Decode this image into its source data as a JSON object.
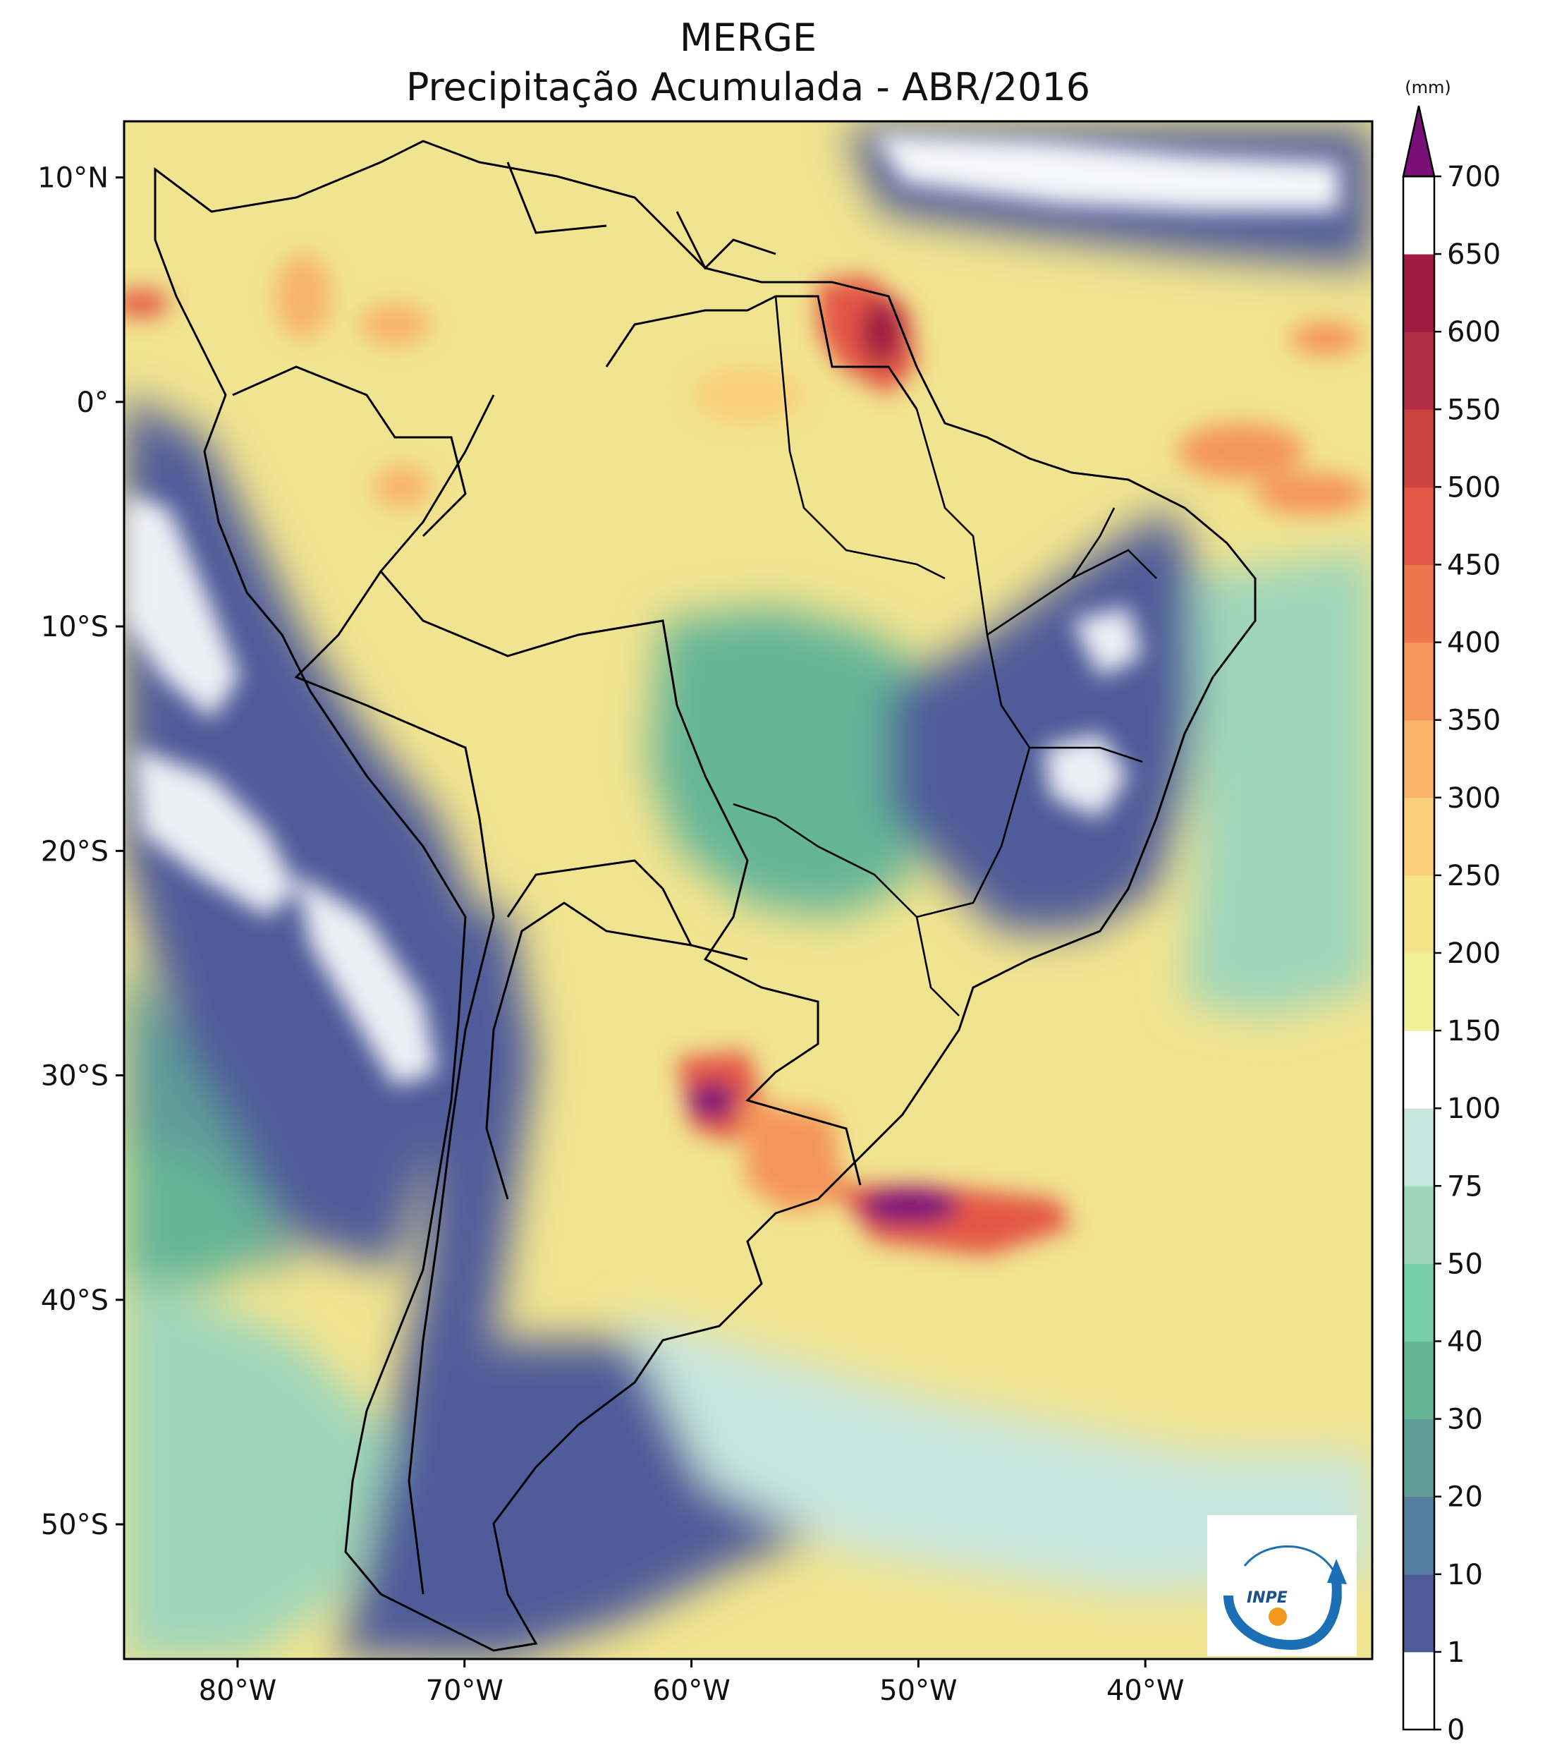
{
  "title": {
    "line1": "MERGE",
    "line2": "Precipitação Acumulada - ABR/2016"
  },
  "map": {
    "lon_range": [
      -85,
      -30
    ],
    "lat_range": [
      -56,
      12.5
    ],
    "lat_ticks": [
      "10°N",
      "0°",
      "10°S",
      "20°S",
      "30°S",
      "40°S",
      "50°S"
    ],
    "lon_ticks": [
      "80°W",
      "70°W",
      "60°W",
      "50°W",
      "40°W"
    ],
    "base_color": "#f1e490"
  },
  "colorbar": {
    "unit": "(mm)",
    "levels": [
      "0",
      "1",
      "10",
      "20",
      "30",
      "40",
      "50",
      "75",
      "100",
      "150",
      "200",
      "250",
      "300",
      "350",
      "400",
      "450",
      "500",
      "550",
      "600",
      "650",
      "700"
    ],
    "colors": [
      "#ffffff",
      "#4f5c99",
      "#577ea0",
      "#5f9c98",
      "#65b597",
      "#75cfa3",
      "#9fd6ba",
      "#c8e6de",
      "#ffffff",
      "#f0f098",
      "#f7e38a",
      "#f9cf79",
      "#f7b46a",
      "#f4955a",
      "#ee764d",
      "#e35744",
      "#cc4342",
      "#b32f43",
      "#9e1b42"
    ],
    "extend_color": "#7a0f78"
  },
  "logo": {
    "text": "INPE"
  }
}
